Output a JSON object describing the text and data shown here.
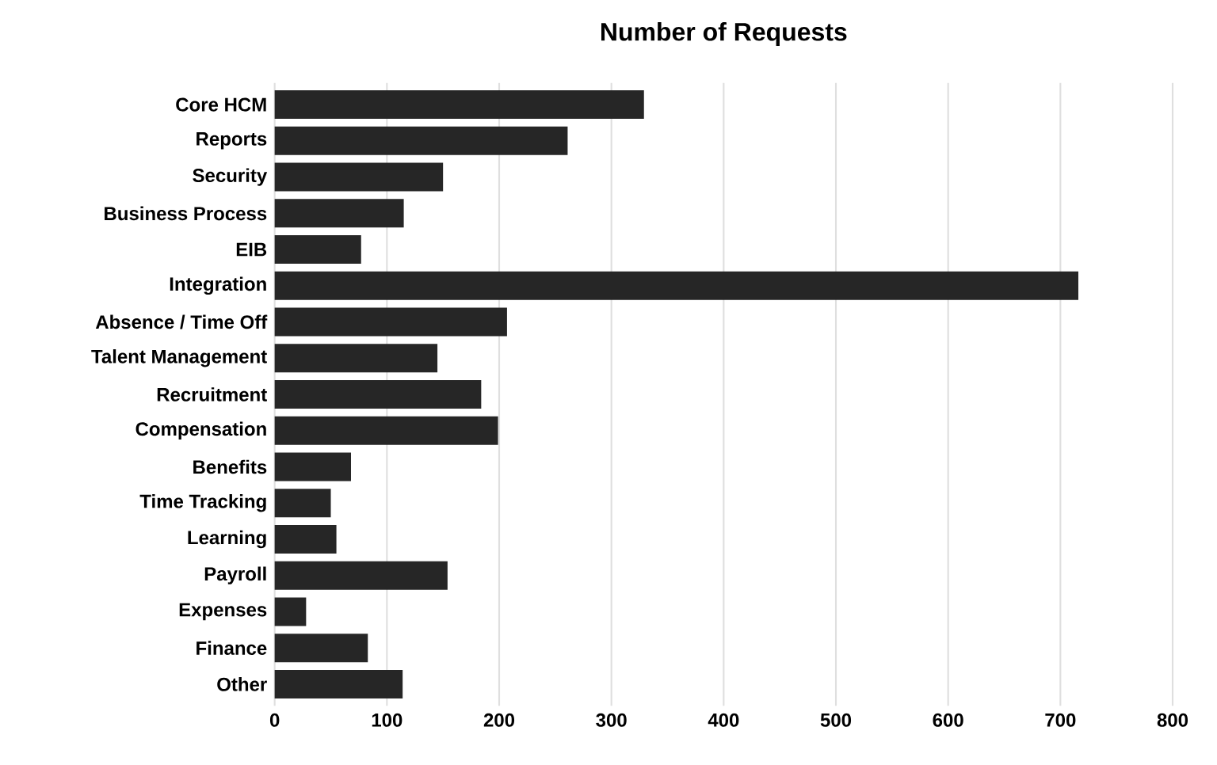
{
  "chart_data": {
    "type": "bar",
    "orientation": "horizontal",
    "title": "Number of Requests",
    "categories": [
      "Core HCM",
      "Reports",
      "Security",
      "Business Process",
      "EIB",
      "Integration",
      "Absence / Time Off",
      "Talent Management",
      "Recruitment",
      "Compensation",
      "Benefits",
      "Time Tracking",
      "Learning",
      "Payroll",
      "Expenses",
      "Finance",
      "Other"
    ],
    "values": [
      329,
      261,
      150,
      115,
      77,
      716,
      207,
      145,
      184,
      199,
      68,
      50,
      55,
      154,
      28,
      83,
      114
    ],
    "color": "#262626",
    "xlim": [
      0,
      800
    ],
    "xticks": [
      0,
      100,
      200,
      300,
      400,
      500,
      600,
      700,
      800
    ],
    "grid": "x"
  }
}
